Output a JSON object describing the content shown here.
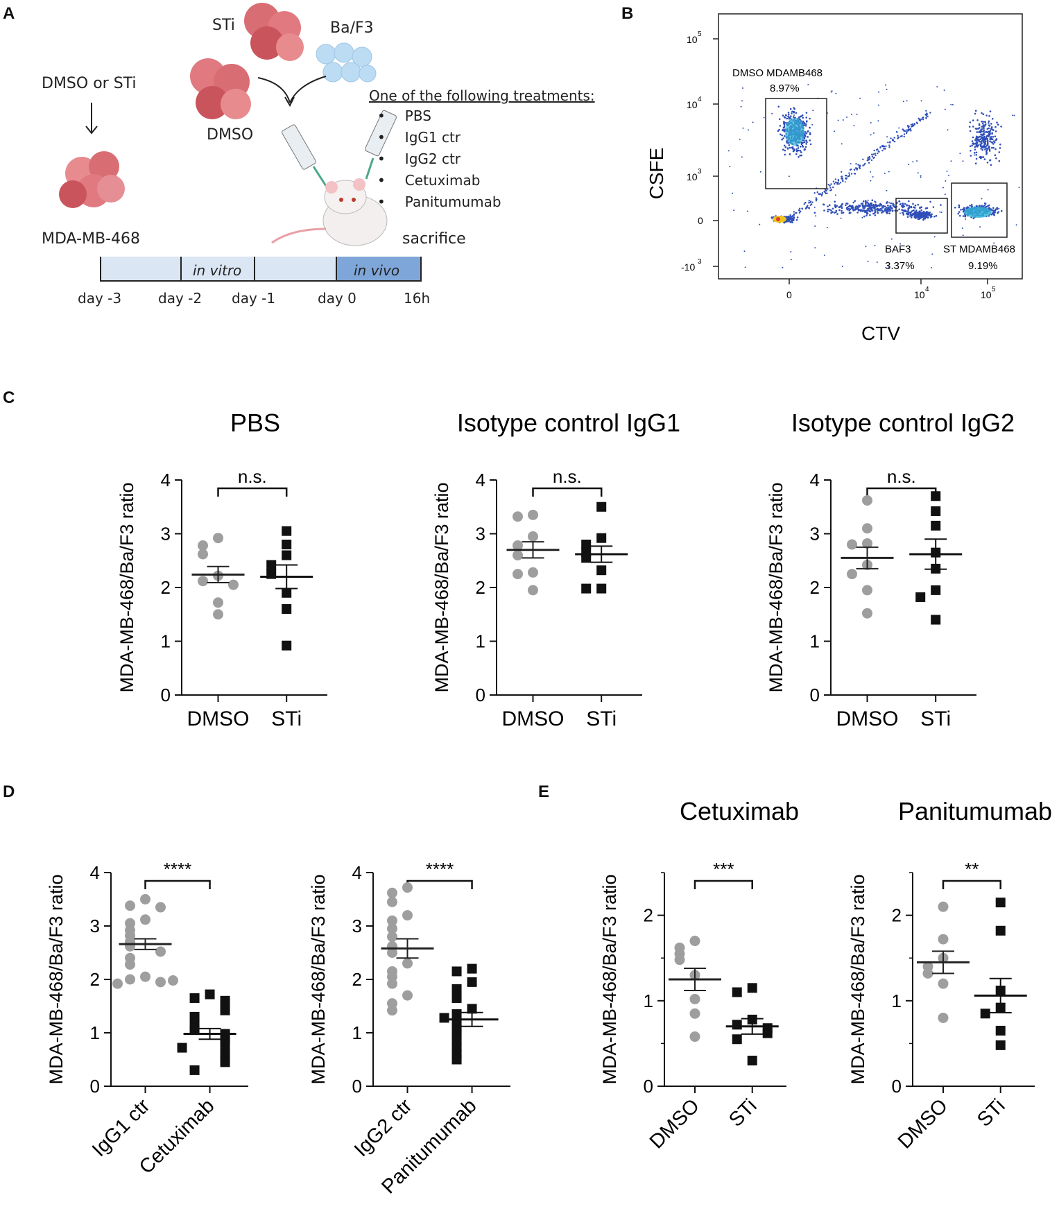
{
  "panels": {
    "a": "A",
    "b": "B",
    "c": "C",
    "d": "D",
    "e": "E"
  },
  "schema": {
    "dmso_or_sti": "DMSO or STi",
    "sti": "STi",
    "baf3": "Ba/F3",
    "dmso": "DMSO",
    "cell_line": "MDA-MB-468",
    "sacrifice": "sacrifice",
    "treat_header": "One of the following treatments:",
    "treatments": [
      "PBS",
      "IgG1 ctr",
      "IgG2 ctr",
      "Cetuximab",
      "Panitumumab"
    ],
    "in_vitro": "in vitro",
    "in_vivo": "in vivo",
    "days": [
      "day -3",
      "day -2",
      "day -1",
      "day 0",
      "16h"
    ]
  },
  "flow": {
    "ylabel": "CSFE",
    "xlabel": "CTV",
    "yticks": [
      "10",
      "10",
      "10",
      "0",
      "-10"
    ],
    "ytick_exp": [
      "5",
      "4",
      "3",
      "",
      "3"
    ],
    "xticks": [
      "0",
      "10",
      "10"
    ],
    "xtick_exp": [
      "",
      "4",
      "5"
    ],
    "gates": [
      {
        "name": "DMSO MDAMB468",
        "pct": "8.97%"
      },
      {
        "name": "BAF3",
        "pct": "3.37%"
      },
      {
        "name": "ST MDAMB468",
        "pct": "9.19%"
      }
    ]
  },
  "colors": {
    "grey_pts": "#9e9e9e",
    "black_pts": "#111111",
    "flow_blue": "#2f4fb8"
  },
  "chart_data": [
    {
      "id": "c1",
      "type": "scatter",
      "title": "PBS",
      "ylabel": "MDA-MB-468/Ba/F3 ratio",
      "ylim": [
        0,
        4
      ],
      "yticks": [
        "0",
        "1",
        "2",
        "3",
        "4"
      ],
      "categories": [
        "DMSO",
        "STi"
      ],
      "sig": "n.s.",
      "series": [
        {
          "name": "DMSO",
          "values": [
            2.92,
            2.78,
            2.62,
            2.22,
            2.12,
            2.05,
            1.72,
            1.5
          ],
          "mean": 2.24,
          "sem": 0.15
        },
        {
          "name": "STi",
          "values": [
            3.05,
            2.8,
            2.6,
            2.42,
            2.25,
            1.9,
            1.6,
            0.92
          ],
          "mean": 2.2,
          "sem": 0.22
        }
      ]
    },
    {
      "id": "c2",
      "type": "scatter",
      "title": "Isotype control IgG1",
      "ylabel": "MDA-MB-468/Ba/F3 ratio",
      "ylim": [
        0,
        4
      ],
      "yticks": [
        "0",
        "1",
        "2",
        "3",
        "4"
      ],
      "categories": [
        "DMSO",
        "STi"
      ],
      "sig": "n.s.",
      "series": [
        {
          "name": "DMSO",
          "values": [
            3.35,
            3.32,
            2.95,
            2.78,
            2.6,
            2.28,
            2.25,
            1.95
          ],
          "mean": 2.7,
          "sem": 0.15
        },
        {
          "name": "STi",
          "values": [
            3.5,
            2.92,
            2.8,
            2.65,
            2.55,
            2.32,
            1.98,
            1.98
          ],
          "mean": 2.62,
          "sem": 0.15
        }
      ]
    },
    {
      "id": "c3",
      "type": "scatter",
      "title": "Isotype control IgG2",
      "ylabel": "MDA-MB-468/Ba/F3 ratio",
      "ylim": [
        0,
        4
      ],
      "yticks": [
        "0",
        "1",
        "2",
        "3",
        "4"
      ],
      "categories": [
        "DMSO",
        "STi"
      ],
      "sig": "n.s.",
      "series": [
        {
          "name": "DMSO",
          "values": [
            3.62,
            3.1,
            2.82,
            2.8,
            2.42,
            2.25,
            1.95,
            1.52
          ],
          "mean": 2.55,
          "sem": 0.2
        },
        {
          "name": "STi",
          "values": [
            3.7,
            3.42,
            3.15,
            2.65,
            2.35,
            1.95,
            1.82,
            1.4
          ],
          "mean": 2.62,
          "sem": 0.28
        }
      ]
    },
    {
      "id": "d1",
      "type": "scatter",
      "title": "",
      "ylabel": "MDA-MB-468/Ba/F3 ratio",
      "ylim": [
        0,
        4
      ],
      "yticks": [
        "0",
        "1",
        "2",
        "3",
        "4"
      ],
      "categories": [
        "IgG1 ctr",
        "Cetuximab"
      ],
      "sig": "****",
      "rotate": true,
      "series": [
        {
          "name": "IgG1 ctr",
          "values": [
            3.5,
            3.38,
            3.35,
            3.12,
            3.05,
            2.92,
            2.82,
            2.7,
            2.62,
            2.52,
            2.4,
            2.28,
            2.05,
            2.0,
            1.95,
            1.92,
            1.98
          ],
          "mean": 2.66,
          "sem": 0.1
        },
        {
          "name": "Cetuximab",
          "values": [
            1.72,
            1.65,
            1.6,
            1.5,
            1.42,
            1.3,
            1.15,
            1.05,
            0.98,
            0.9,
            0.85,
            0.78,
            0.72,
            0.62,
            0.55,
            0.45,
            0.3
          ],
          "mean": 0.98,
          "sem": 0.1
        }
      ]
    },
    {
      "id": "d2",
      "type": "scatter",
      "title": "",
      "ylabel": "MDA-MB-468/Ba/F3 ratio",
      "ylim": [
        0,
        4
      ],
      "yticks": [
        "0",
        "1",
        "2",
        "3",
        "4"
      ],
      "categories": [
        "IgG2 ctr",
        "Panitumumab"
      ],
      "sig": "****",
      "rotate": true,
      "series": [
        {
          "name": "IgG2 ctr",
          "values": [
            3.72,
            3.62,
            3.45,
            3.2,
            3.1,
            2.95,
            2.8,
            2.62,
            2.5,
            2.3,
            2.15,
            2.05,
            1.92,
            1.7,
            1.55,
            1.42
          ],
          "mean": 2.58,
          "sem": 0.18
        },
        {
          "name": "Panitumumab",
          "values": [
            2.2,
            2.15,
            1.95,
            1.82,
            1.65,
            1.45,
            1.35,
            1.2,
            1.05,
            0.98,
            0.85,
            0.72,
            0.6,
            0.5,
            1.28
          ],
          "mean": 1.25,
          "sem": 0.13
        }
      ]
    },
    {
      "id": "e1",
      "type": "scatter",
      "title": "Cetuximab",
      "ylabel": "MDA-MB-468/Ba/F3 ratio",
      "ylim": [
        0,
        2.5
      ],
      "yticks": [
        "0",
        "1",
        "2"
      ],
      "categories": [
        "DMSO",
        "STi"
      ],
      "sig": "***",
      "rotate": true,
      "series": [
        {
          "name": "DMSO",
          "values": [
            1.7,
            1.62,
            1.55,
            1.48,
            1.3,
            1.02,
            0.85,
            0.58
          ],
          "mean": 1.25,
          "sem": 0.13
        },
        {
          "name": "STi",
          "values": [
            1.15,
            1.1,
            0.78,
            0.72,
            0.68,
            0.62,
            0.55,
            0.3
          ],
          "mean": 0.7,
          "sem": 0.09
        }
      ]
    },
    {
      "id": "e2",
      "type": "scatter",
      "title": "Panitumumab",
      "ylabel": "MDA-MB-468/Ba/F3 ratio",
      "ylim": [
        0,
        2.5
      ],
      "yticks": [
        "0",
        "1",
        "2"
      ],
      "categories": [
        "DMSO",
        "STi"
      ],
      "sig": "**",
      "rotate": true,
      "series": [
        {
          "name": "DMSO",
          "values": [
            2.1,
            1.72,
            1.5,
            1.4,
            1.32,
            1.2,
            0.8
          ],
          "mean": 1.45,
          "sem": 0.13
        },
        {
          "name": "STi",
          "values": [
            2.15,
            1.82,
            1.12,
            0.92,
            0.85,
            0.65,
            0.48
          ],
          "mean": 1.06,
          "sem": 0.2
        }
      ]
    }
  ]
}
